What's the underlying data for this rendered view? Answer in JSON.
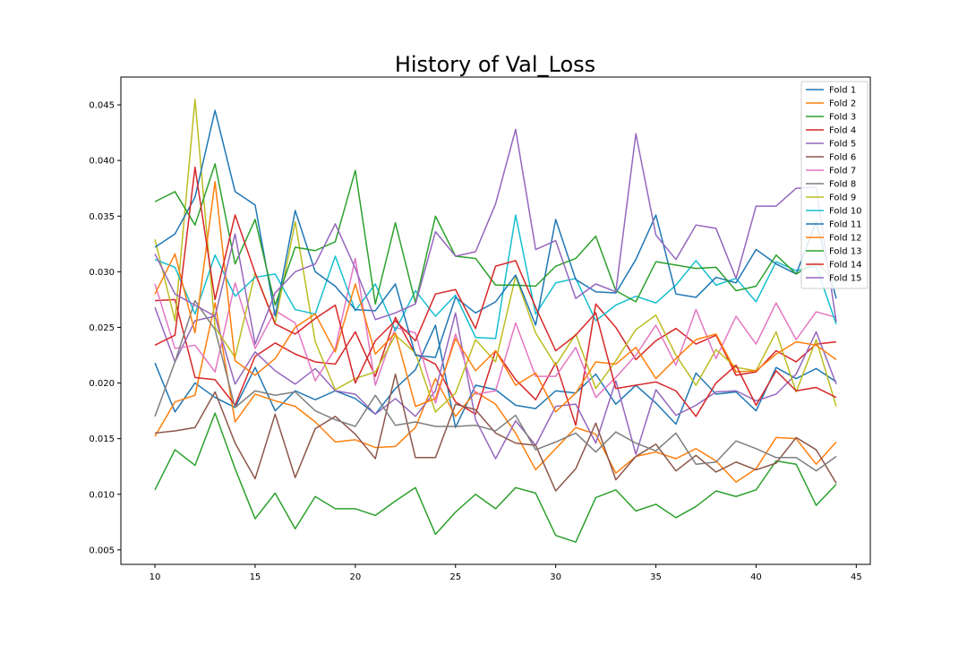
{
  "chart_data": {
    "type": "line",
    "title": "History of Val_Loss",
    "xlabel": "",
    "ylabel": "",
    "xlim": [
      8.3,
      45.7
    ],
    "ylim": [
      0.0037,
      0.0475
    ],
    "xticks": [
      10,
      15,
      20,
      25,
      30,
      35,
      40,
      45
    ],
    "yticks": [
      0.005,
      0.01,
      0.015,
      0.02,
      0.025,
      0.03,
      0.035,
      0.04,
      0.045
    ],
    "ytick_labels": [
      "0.005",
      "0.010",
      "0.015",
      "0.020",
      "0.025",
      "0.030",
      "0.035",
      "0.040",
      "0.045"
    ],
    "grid": false,
    "legend_position": "top-right",
    "x": [
      10,
      11,
      12,
      13,
      14,
      15,
      16,
      17,
      18,
      19,
      20,
      21,
      22,
      23,
      24,
      25,
      26,
      27,
      28,
      29,
      30,
      31,
      32,
      33,
      34,
      35,
      36,
      37,
      38,
      39,
      40,
      41,
      42,
      43,
      44
    ],
    "series": [
      {
        "name": "Fold 1",
        "color": "#1f77b4",
        "values": [
          0.0218,
          0.0174,
          0.02,
          0.0187,
          0.0178,
          0.0214,
          0.0175,
          0.0193,
          0.0185,
          0.0193,
          0.0186,
          0.0172,
          0.0195,
          0.0212,
          0.0252,
          0.016,
          0.0198,
          0.0194,
          0.018,
          0.0177,
          0.0193,
          0.0191,
          0.0208,
          0.0181,
          0.0198,
          0.0182,
          0.0163,
          0.0209,
          0.019,
          0.0192,
          0.0175,
          0.0214,
          0.0204,
          0.0213,
          0.0201
        ]
      },
      {
        "name": "Fold 2",
        "color": "#ff7f0e",
        "values": [
          0.0152,
          0.0183,
          0.0189,
          0.0272,
          0.0165,
          0.019,
          0.0184,
          0.0179,
          0.0165,
          0.0147,
          0.0149,
          0.0142,
          0.0143,
          0.016,
          0.0204,
          0.017,
          0.0192,
          0.0181,
          0.0155,
          0.0122,
          0.0141,
          0.016,
          0.0154,
          0.0119,
          0.0134,
          0.0138,
          0.0132,
          0.0141,
          0.013,
          0.0111,
          0.0123,
          0.0151,
          0.015,
          0.0127,
          0.0147
        ]
      },
      {
        "name": "Fold 3",
        "color": "#2ca02c",
        "values": [
          0.0104,
          0.014,
          0.0126,
          0.0173,
          0.0123,
          0.0078,
          0.0101,
          0.0069,
          0.0098,
          0.0087,
          0.0087,
          0.0081,
          0.0094,
          0.0106,
          0.0064,
          0.0084,
          0.01,
          0.0087,
          0.0106,
          0.0101,
          0.0063,
          0.0057,
          0.0097,
          0.0104,
          0.0085,
          0.0091,
          0.0079,
          0.0089,
          0.0103,
          0.0098,
          0.0104,
          0.013,
          0.0127,
          0.009,
          0.0109
        ]
      },
      {
        "name": "Fold 4",
        "color": "#d62728",
        "values": [
          0.0274,
          0.0275,
          0.0205,
          0.0203,
          0.018,
          0.0224,
          0.0236,
          0.0226,
          0.0219,
          0.0217,
          0.0246,
          0.0206,
          0.0259,
          0.0226,
          0.0217,
          0.0183,
          0.0172,
          0.0229,
          0.0203,
          0.0185,
          0.0218,
          0.0162,
          0.0271,
          0.025,
          0.0221,
          0.0238,
          0.0249,
          0.0235,
          0.0243,
          0.0207,
          0.021,
          0.0229,
          0.0219,
          0.0235,
          0.0237
        ]
      },
      {
        "name": "Fold 5",
        "color": "#9467bd",
        "values": [
          0.0268,
          0.0219,
          0.0256,
          0.026,
          0.0199,
          0.0228,
          0.0211,
          0.0199,
          0.0213,
          0.0193,
          0.019,
          0.0172,
          0.0186,
          0.017,
          0.0193,
          0.0263,
          0.0167,
          0.0132,
          0.0166,
          0.0144,
          0.0179,
          0.0181,
          0.0146,
          0.0202,
          0.0136,
          0.0194,
          0.0171,
          0.018,
          0.0192,
          0.0193,
          0.0184,
          0.019,
          0.0208,
          0.0246,
          0.0199
        ]
      },
      {
        "name": "Fold 6",
        "color": "#8c564b",
        "values": [
          0.0155,
          0.0157,
          0.016,
          0.0192,
          0.0146,
          0.0114,
          0.0172,
          0.0115,
          0.0159,
          0.017,
          0.0154,
          0.0132,
          0.0208,
          0.0133,
          0.0133,
          0.0181,
          0.0176,
          0.0155,
          0.0146,
          0.0144,
          0.0103,
          0.0123,
          0.0164,
          0.0113,
          0.0134,
          0.0145,
          0.0121,
          0.0135,
          0.012,
          0.0129,
          0.0122,
          0.0128,
          0.0151,
          0.014,
          0.011
        ]
      },
      {
        "name": "Fold 7",
        "color": "#e377c2",
        "values": [
          0.0289,
          0.0231,
          0.0234,
          0.021,
          0.029,
          0.0231,
          0.0265,
          0.0254,
          0.0202,
          0.0231,
          0.0312,
          0.0198,
          0.025,
          0.0245,
          0.0182,
          0.0244,
          0.019,
          0.0193,
          0.0254,
          0.0206,
          0.0206,
          0.0232,
          0.0187,
          0.0205,
          0.0225,
          0.0252,
          0.0216,
          0.0266,
          0.0222,
          0.026,
          0.0235,
          0.0272,
          0.0239,
          0.0264,
          0.0259
        ]
      },
      {
        "name": "Fold 8",
        "color": "#7f7f7f",
        "values": [
          0.017,
          0.0219,
          0.0274,
          0.0248,
          0.0178,
          0.0193,
          0.0189,
          0.0192,
          0.0175,
          0.0167,
          0.0161,
          0.0189,
          0.0162,
          0.0165,
          0.0161,
          0.0161,
          0.0162,
          0.0157,
          0.0171,
          0.014,
          0.0147,
          0.0155,
          0.0138,
          0.0156,
          0.0146,
          0.0139,
          0.0155,
          0.0127,
          0.0129,
          0.0148,
          0.0141,
          0.0133,
          0.0133,
          0.0121,
          0.0134
        ]
      },
      {
        "name": "Fold 9",
        "color": "#bcbd22",
        "values": [
          0.0329,
          0.0256,
          0.0455,
          0.025,
          0.0223,
          0.0299,
          0.0254,
          0.0345,
          0.0237,
          0.0194,
          0.0204,
          0.021,
          0.0243,
          0.0227,
          0.0174,
          0.0191,
          0.0239,
          0.0219,
          0.0296,
          0.0245,
          0.0216,
          0.0244,
          0.0195,
          0.022,
          0.0248,
          0.0261,
          0.0225,
          0.0198,
          0.023,
          0.0214,
          0.0211,
          0.0246,
          0.0192,
          0.0239,
          0.0179
        ]
      },
      {
        "name": "Fold 10",
        "color": "#17becf",
        "values": [
          0.0311,
          0.0304,
          0.0262,
          0.0315,
          0.0278,
          0.0295,
          0.0298,
          0.0266,
          0.0262,
          0.0314,
          0.0265,
          0.0289,
          0.0247,
          0.0283,
          0.026,
          0.0279,
          0.0241,
          0.024,
          0.0351,
          0.0262,
          0.029,
          0.0294,
          0.0256,
          0.027,
          0.0278,
          0.0272,
          0.0288,
          0.031,
          0.0288,
          0.0294,
          0.0273,
          0.0309,
          0.0301,
          0.0305,
          0.0253
        ]
      },
      {
        "name": "Fold 11",
        "color": "#1f77b4",
        "values": [
          0.0322,
          0.0334,
          0.0367,
          0.0445,
          0.0372,
          0.036,
          0.026,
          0.0355,
          0.03,
          0.0287,
          0.0266,
          0.0265,
          0.0289,
          0.0225,
          0.0223,
          0.0277,
          0.0263,
          0.0273,
          0.0297,
          0.0252,
          0.0347,
          0.0293,
          0.0282,
          0.0281,
          0.0311,
          0.0351,
          0.028,
          0.0277,
          0.0295,
          0.029,
          0.032,
          0.0307,
          0.0298,
          0.0345,
          0.0276
        ]
      },
      {
        "name": "Fold 12",
        "color": "#ff7f0e",
        "values": [
          0.028,
          0.0316,
          0.0245,
          0.0381,
          0.022,
          0.0207,
          0.0222,
          0.025,
          0.0262,
          0.0228,
          0.0289,
          0.0226,
          0.0245,
          0.0179,
          0.0186,
          0.024,
          0.0211,
          0.0229,
          0.0198,
          0.0209,
          0.0174,
          0.0191,
          0.0219,
          0.0217,
          0.0232,
          0.0204,
          0.0222,
          0.0239,
          0.0244,
          0.021,
          0.0211,
          0.0226,
          0.0237,
          0.0234,
          0.0221
        ]
      },
      {
        "name": "Fold 13",
        "color": "#2ca02c",
        "values": [
          0.0363,
          0.0372,
          0.0342,
          0.0397,
          0.0307,
          0.0347,
          0.027,
          0.0322,
          0.0319,
          0.0327,
          0.0391,
          0.0271,
          0.0344,
          0.0272,
          0.035,
          0.0314,
          0.0312,
          0.0288,
          0.0288,
          0.0287,
          0.0305,
          0.0312,
          0.0332,
          0.0283,
          0.0273,
          0.0309,
          0.0306,
          0.0303,
          0.0304,
          0.0283,
          0.0287,
          0.0315,
          0.0298,
          0.0309,
          0.029
        ]
      },
      {
        "name": "Fold 14",
        "color": "#d62728",
        "values": [
          0.0234,
          0.0243,
          0.0394,
          0.0275,
          0.0351,
          0.0299,
          0.0253,
          0.0244,
          0.0258,
          0.027,
          0.02,
          0.0238,
          0.0256,
          0.0238,
          0.028,
          0.0284,
          0.0249,
          0.0305,
          0.031,
          0.0268,
          0.0229,
          0.0243,
          0.0263,
          0.0195,
          0.0198,
          0.0201,
          0.0193,
          0.017,
          0.02,
          0.0216,
          0.018,
          0.0211,
          0.0193,
          0.0196,
          0.0187
        ]
      },
      {
        "name": "Fold 15",
        "color": "#9467bd",
        "values": [
          0.0316,
          0.028,
          0.027,
          0.026,
          0.0334,
          0.0235,
          0.0281,
          0.03,
          0.0307,
          0.0343,
          0.0303,
          0.0257,
          0.0263,
          0.0271,
          0.0336,
          0.0314,
          0.0318,
          0.0361,
          0.0428,
          0.032,
          0.0328,
          0.0276,
          0.0289,
          0.0282,
          0.0424,
          0.0333,
          0.0311,
          0.0342,
          0.0339,
          0.0294,
          0.0359,
          0.0359,
          0.0375,
          0.0376,
          0.0255
        ]
      }
    ]
  }
}
